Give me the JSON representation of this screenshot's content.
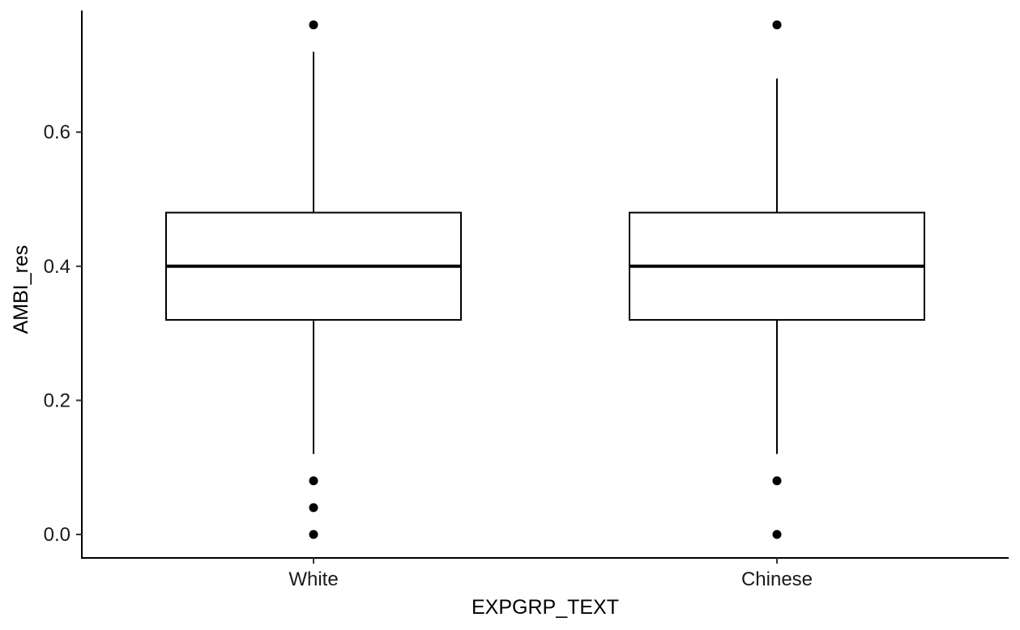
{
  "chart_data": {
    "type": "boxplot",
    "xlabel": "EXPGRP_TEXT",
    "ylabel": "AMBI_res",
    "categories": [
      "White",
      "Chinese"
    ],
    "ylim": [
      -0.035,
      0.785
    ],
    "yticks": [
      0.0,
      0.2,
      0.4,
      0.6
    ],
    "ytick_labels": [
      "0.0",
      "0.2",
      "0.4",
      "0.6"
    ],
    "grid": false,
    "legend": "none",
    "boxes": [
      {
        "category": "White",
        "whisker_low": 0.12,
        "q1": 0.32,
        "median": 0.4,
        "q3": 0.48,
        "whisker_high": 0.72,
        "outliers": [
          0.76,
          0.08,
          0.04,
          0.0
        ]
      },
      {
        "category": "Chinese",
        "whisker_low": 0.12,
        "q1": 0.32,
        "median": 0.4,
        "q3": 0.48,
        "whisker_high": 0.68,
        "outliers": [
          0.76,
          0.08,
          0.0
        ]
      }
    ],
    "colors": {
      "box_fill": "#ffffff",
      "line": "#000000",
      "text": "#1a1a1a"
    }
  }
}
